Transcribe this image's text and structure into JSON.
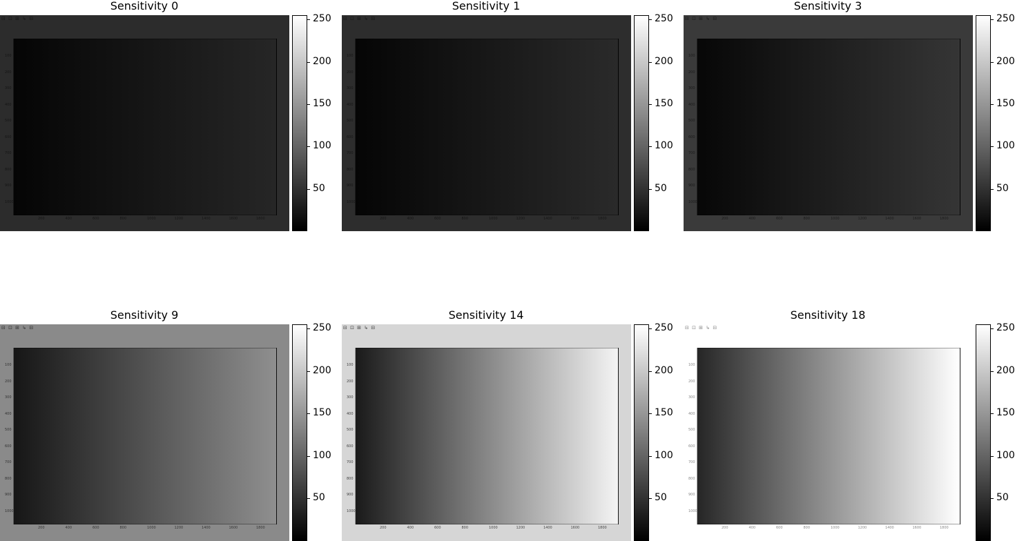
{
  "panels": [
    {
      "title": "Sensitivity 0",
      "bg": "#2c2c2c",
      "screen_start": "#050505",
      "screen_end": "#262626",
      "text_color": "#151515",
      "colorbar_ticks": [
        "250",
        "200",
        "150",
        "100",
        "50"
      ]
    },
    {
      "title": "Sensitivity 1",
      "bg": "#2d2d2d",
      "screen_start": "#050505",
      "screen_end": "#2a2a2a",
      "text_color": "#151515",
      "colorbar_ticks": [
        "250",
        "200",
        "150",
        "100",
        "50"
      ]
    },
    {
      "title": "Sensitivity 3",
      "bg": "#3a3a3a",
      "screen_start": "#070707",
      "screen_end": "#353535",
      "text_color": "#1a1a1a",
      "colorbar_ticks": [
        "250",
        "200",
        "150",
        "100",
        "50"
      ]
    },
    {
      "title": "Sensitivity 9",
      "bg": "#8a8a8a",
      "screen_start": "#161616",
      "screen_end": "#8f8f8f",
      "text_color": "#333333",
      "colorbar_ticks": [
        "250",
        "200",
        "150",
        "100",
        "50"
      ]
    },
    {
      "title": "Sensitivity 14",
      "bg": "#d6d6d6",
      "screen_start": "#1a1a1a",
      "screen_end": "#f4f4f4",
      "text_color": "#444444",
      "colorbar_ticks": [
        "250",
        "200",
        "150",
        "100",
        "50"
      ]
    },
    {
      "title": "Sensitivity 18",
      "bg": "#ffffff",
      "screen_start": "#262626",
      "screen_end": "#ffffff",
      "text_color": "#888888",
      "colorbar_ticks": [
        "250",
        "200",
        "150",
        "100",
        "50"
      ]
    }
  ],
  "photo_content": {
    "toolbar_text": "⊟ ⊡ ⊞ ↳ ⊟",
    "y_ticks": [
      "100",
      "200",
      "300",
      "400",
      "500",
      "600",
      "700",
      "800",
      "900",
      "1000"
    ],
    "x_ticks": [
      "200",
      "400",
      "600",
      "800",
      "1000",
      "1200",
      "1400",
      "1600",
      "1800"
    ]
  },
  "chart_data": [
    {
      "type": "heatmap",
      "title": "Sensitivity 0",
      "colormap": "gray",
      "clim": [
        0,
        255
      ],
      "colorbar_ticks": [
        50,
        100,
        150,
        200,
        250
      ],
      "mean_level_left": 5,
      "mean_level_right": 38
    },
    {
      "type": "heatmap",
      "title": "Sensitivity 1",
      "colormap": "gray",
      "clim": [
        0,
        255
      ],
      "colorbar_ticks": [
        50,
        100,
        150,
        200,
        250
      ],
      "mean_level_left": 5,
      "mean_level_right": 42
    },
    {
      "type": "heatmap",
      "title": "Sensitivity 3",
      "colormap": "gray",
      "clim": [
        0,
        255
      ],
      "colorbar_ticks": [
        50,
        100,
        150,
        200,
        250
      ],
      "mean_level_left": 7,
      "mean_level_right": 53
    },
    {
      "type": "heatmap",
      "title": "Sensitivity 9",
      "colormap": "gray",
      "clim": [
        0,
        255
      ],
      "colorbar_ticks": [
        50,
        100,
        150,
        200,
        250
      ],
      "mean_level_left": 22,
      "mean_level_right": 143
    },
    {
      "type": "heatmap",
      "title": "Sensitivity 14",
      "colormap": "gray",
      "clim": [
        0,
        255
      ],
      "colorbar_ticks": [
        50,
        100,
        150,
        200,
        250
      ],
      "mean_level_left": 26,
      "mean_level_right": 244
    },
    {
      "type": "heatmap",
      "title": "Sensitivity 18",
      "colormap": "gray",
      "clim": [
        0,
        255
      ],
      "colorbar_ticks": [
        50,
        100,
        150,
        200,
        250
      ],
      "mean_level_left": 38,
      "mean_level_right": 255
    }
  ]
}
